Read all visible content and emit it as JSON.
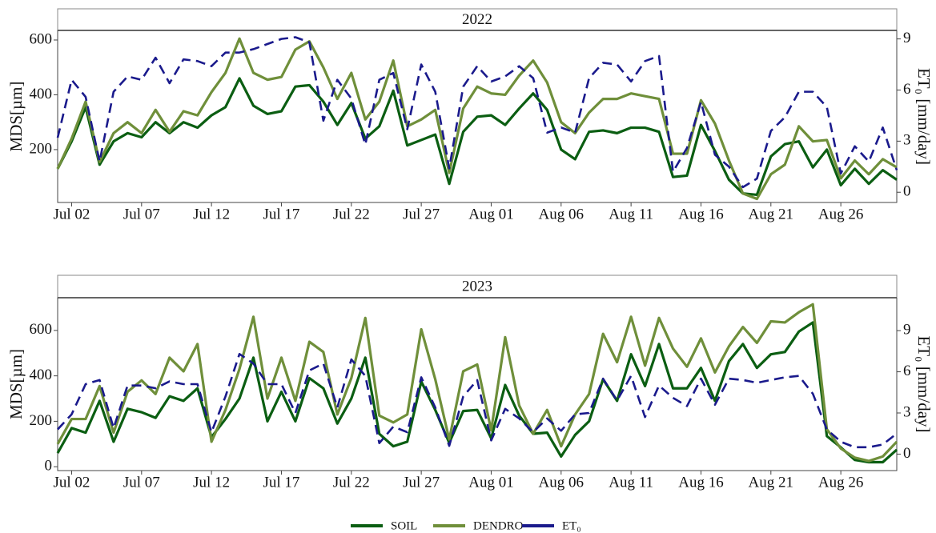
{
  "chart_data": [
    {
      "type": "line",
      "title": "2022",
      "y_label": "MDS[µm]",
      "y2_label": "ET₀ [mm/day]",
      "x": [
        "2022-07-01",
        "2022-07-02",
        "2022-07-03",
        "2022-07-04",
        "2022-07-05",
        "2022-07-06",
        "2022-07-07",
        "2022-07-08",
        "2022-07-09",
        "2022-07-10",
        "2022-07-11",
        "2022-07-12",
        "2022-07-13",
        "2022-07-14",
        "2022-07-15",
        "2022-07-16",
        "2022-07-17",
        "2022-07-18",
        "2022-07-19",
        "2022-07-20",
        "2022-07-21",
        "2022-07-22",
        "2022-07-23",
        "2022-07-24",
        "2022-07-25",
        "2022-07-26",
        "2022-07-27",
        "2022-07-28",
        "2022-07-29",
        "2022-07-30",
        "2022-07-31",
        "2022-08-01",
        "2022-08-02",
        "2022-08-03",
        "2022-08-04",
        "2022-08-05",
        "2022-08-06",
        "2022-08-07",
        "2022-08-08",
        "2022-08-09",
        "2022-08-10",
        "2022-08-11",
        "2022-08-12",
        "2022-08-13",
        "2022-08-14",
        "2022-08-15",
        "2022-08-16",
        "2022-08-17",
        "2022-08-18",
        "2022-08-19",
        "2022-08-20",
        "2022-08-21",
        "2022-08-22",
        "2022-08-23",
        "2022-08-24",
        "2022-08-25",
        "2022-08-26",
        "2022-08-27",
        "2022-08-28",
        "2022-08-29",
        "2022-08-30"
      ],
      "xlim": [
        "2022-07-01",
        "2022-08-30"
      ],
      "xticks": [
        {
          "value": "2022-07-02",
          "label": "Jul 02"
        },
        {
          "value": "2022-07-07",
          "label": "Jul 07"
        },
        {
          "value": "2022-07-12",
          "label": "Jul 12"
        },
        {
          "value": "2022-07-17",
          "label": "Jul 17"
        },
        {
          "value": "2022-07-22",
          "label": "Jul 22"
        },
        {
          "value": "2022-07-27",
          "label": "Jul 27"
        },
        {
          "value": "2022-08-01",
          "label": "Aug 01"
        },
        {
          "value": "2022-08-06",
          "label": "Aug 06"
        },
        {
          "value": "2022-08-11",
          "label": "Aug 11"
        },
        {
          "value": "2022-08-16",
          "label": "Aug 16"
        },
        {
          "value": "2022-08-21",
          "label": "Aug 21"
        },
        {
          "value": "2022-08-26",
          "label": "Aug 26"
        }
      ],
      "ylim": [
        7,
        635
      ],
      "yticks": [
        200,
        400,
        600
      ],
      "y2lim": [
        -0.6,
        9.5
      ],
      "y2ticks": [
        0,
        3,
        6,
        9
      ],
      "series": [
        {
          "name": "SOIL",
          "color": "#0b5e12",
          "line_style": "solid",
          "values": [
            130,
            230,
            355,
            145,
            230,
            260,
            245,
            300,
            260,
            300,
            280,
            325,
            355,
            460,
            360,
            330,
            340,
            430,
            435,
            375,
            290,
            370,
            240,
            285,
            415,
            215,
            235,
            255,
            75,
            265,
            320,
            325,
            290,
            350,
            405,
            345,
            200,
            165,
            265,
            270,
            260,
            280,
            280,
            265,
            100,
            105,
            290,
            195,
            90,
            40,
            35,
            175,
            220,
            230,
            135,
            200,
            70,
            130,
            75,
            125,
            90
          ]
        },
        {
          "name": "DENDRO",
          "color": "#6f8f3a",
          "line_style": "solid",
          "values": [
            130,
            240,
            375,
            155,
            260,
            300,
            260,
            345,
            265,
            340,
            325,
            410,
            480,
            605,
            480,
            455,
            465,
            565,
            595,
            500,
            385,
            480,
            310,
            375,
            525,
            285,
            310,
            345,
            115,
            350,
            430,
            405,
            400,
            470,
            525,
            445,
            300,
            260,
            335,
            385,
            385,
            405,
            395,
            385,
            185,
            185,
            380,
            295,
            160,
            40,
            20,
            110,
            145,
            285,
            230,
            235,
            95,
            160,
            110,
            165,
            135
          ]
        },
        {
          "name": "ET₀",
          "color": "#1a1a8c",
          "line_style": "dashed",
          "axis": "y2",
          "values": [
            3.2,
            6.6,
            5.6,
            1.8,
            5.9,
            6.8,
            6.6,
            7.9,
            6.4,
            7.8,
            7.7,
            7.4,
            8.2,
            8.2,
            8.4,
            8.7,
            9.0,
            9.1,
            8.8,
            4.2,
            6.6,
            5.5,
            2.8,
            6.6,
            7.0,
            3.7,
            7.5,
            5.9,
            1.4,
            6.2,
            7.4,
            6.5,
            6.8,
            7.4,
            6.7,
            3.5,
            3.8,
            3.5,
            6.7,
            7.6,
            7.5,
            6.5,
            7.7,
            8.0,
            1.2,
            2.6,
            5.3,
            2.2,
            1.5,
            0.3,
            0.8,
            3.6,
            4.4,
            5.9,
            5.9,
            5.0,
            1.1,
            2.7,
            1.8,
            3.8,
            1.3
          ]
        }
      ]
    },
    {
      "type": "line",
      "title": "2023",
      "y_label": "MDS[µm]",
      "y2_label": "ET₀ [mm/day]",
      "x": [
        "2023-07-01",
        "2023-07-02",
        "2023-07-03",
        "2023-07-04",
        "2023-07-05",
        "2023-07-06",
        "2023-07-07",
        "2023-07-08",
        "2023-07-09",
        "2023-07-10",
        "2023-07-11",
        "2023-07-12",
        "2023-07-13",
        "2023-07-14",
        "2023-07-15",
        "2023-07-16",
        "2023-07-17",
        "2023-07-18",
        "2023-07-19",
        "2023-07-20",
        "2023-07-21",
        "2023-07-22",
        "2023-07-23",
        "2023-07-24",
        "2023-07-25",
        "2023-07-26",
        "2023-07-27",
        "2023-07-28",
        "2023-07-29",
        "2023-07-30",
        "2023-07-31",
        "2023-08-01",
        "2023-08-02",
        "2023-08-03",
        "2023-08-04",
        "2023-08-05",
        "2023-08-06",
        "2023-08-07",
        "2023-08-08",
        "2023-08-09",
        "2023-08-10",
        "2023-08-11",
        "2023-08-12",
        "2023-08-13",
        "2023-08-14",
        "2023-08-15",
        "2023-08-16",
        "2023-08-17",
        "2023-08-18",
        "2023-08-19",
        "2023-08-20",
        "2023-08-21",
        "2023-08-22",
        "2023-08-23",
        "2023-08-24",
        "2023-08-25",
        "2023-08-26",
        "2023-08-27",
        "2023-08-28",
        "2023-08-29",
        "2023-08-30"
      ],
      "xlim": [
        "2023-07-01",
        "2023-08-30"
      ],
      "xticks": [
        {
          "value": "2023-07-02",
          "label": "Jul 02"
        },
        {
          "value": "2023-07-07",
          "label": "Jul 07"
        },
        {
          "value": "2023-07-12",
          "label": "Jul 12"
        },
        {
          "value": "2023-07-17",
          "label": "Jul 17"
        },
        {
          "value": "2023-07-22",
          "label": "Jul 22"
        },
        {
          "value": "2023-07-27",
          "label": "Jul 27"
        },
        {
          "value": "2023-08-01",
          "label": "Aug 01"
        },
        {
          "value": "2023-08-06",
          "label": "Aug 06"
        },
        {
          "value": "2023-08-11",
          "label": "Aug 11"
        },
        {
          "value": "2023-08-16",
          "label": "Aug 16"
        },
        {
          "value": "2023-08-21",
          "label": "Aug 21"
        },
        {
          "value": "2023-08-26",
          "label": "Aug 26"
        }
      ],
      "ylim": [
        -17,
        744
      ],
      "yticks": [
        0,
        200,
        400,
        600
      ],
      "y2lim": [
        -1.2,
        11.4
      ],
      "y2ticks": [
        0,
        3,
        6,
        9
      ],
      "series": [
        {
          "name": "SOIL",
          "color": "#0b5e12",
          "line_style": "solid",
          "values": [
            60,
            170,
            150,
            290,
            110,
            255,
            240,
            215,
            310,
            290,
            345,
            130,
            210,
            300,
            480,
            200,
            330,
            200,
            390,
            345,
            190,
            300,
            480,
            145,
            90,
            110,
            375,
            250,
            105,
            245,
            250,
            125,
            360,
            225,
            145,
            150,
            45,
            140,
            200,
            385,
            290,
            495,
            355,
            540,
            345,
            345,
            435,
            290,
            465,
            540,
            435,
            495,
            505,
            595,
            635,
            135,
            85,
            30,
            20,
            20,
            75
          ]
        },
        {
          "name": "DENDRO",
          "color": "#6f8f3a",
          "line_style": "solid",
          "values": [
            100,
            210,
            210,
            355,
            150,
            330,
            380,
            320,
            480,
            420,
            540,
            110,
            250,
            430,
            660,
            300,
            480,
            290,
            550,
            505,
            230,
            390,
            655,
            225,
            195,
            230,
            605,
            385,
            120,
            420,
            450,
            160,
            570,
            270,
            145,
            250,
            90,
            230,
            320,
            585,
            460,
            660,
            445,
            655,
            520,
            440,
            565,
            415,
            530,
            615,
            545,
            640,
            635,
            680,
            715,
            165,
            80,
            40,
            25,
            45,
            110
          ]
        },
        {
          "name": "ET₀",
          "color": "#1a1a8c",
          "line_style": "dashed",
          "axis": "y2",
          "values": [
            1.8,
            2.9,
            5.1,
            5.4,
            1.9,
            5.0,
            5.0,
            4.8,
            5.3,
            5.1,
            5.1,
            1.6,
            4.2,
            7.3,
            6.6,
            5.1,
            5.1,
            3.0,
            6.1,
            6.6,
            3.4,
            6.9,
            5.7,
            0.8,
            2.0,
            1.6,
            5.6,
            3.4,
            0.6,
            4.2,
            5.4,
            1.0,
            3.3,
            2.6,
            1.6,
            2.6,
            1.7,
            2.9,
            3.0,
            5.5,
            3.9,
            5.7,
            2.7,
            5.0,
            4.1,
            3.5,
            5.5,
            3.6,
            5.5,
            5.4,
            5.2,
            5.4,
            5.6,
            5.7,
            4.4,
            1.8,
            0.9,
            0.5,
            0.5,
            0.7,
            1.5
          ]
        }
      ]
    }
  ]
}
